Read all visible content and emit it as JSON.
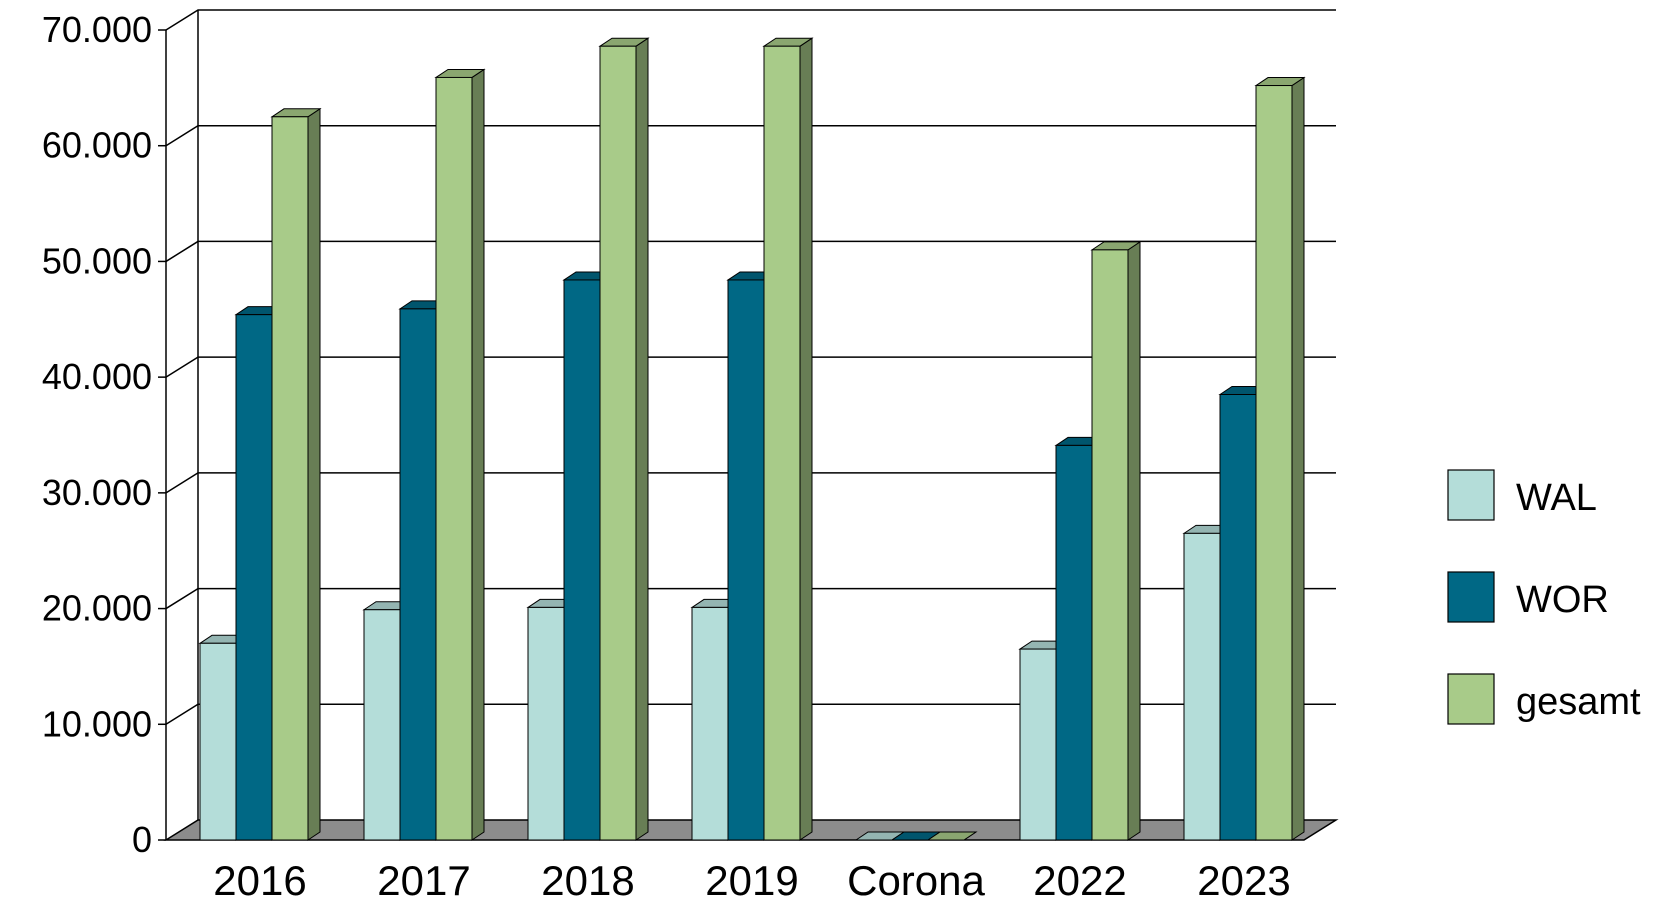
{
  "chart_data": {
    "type": "bar",
    "categories": [
      "2016",
      "2017",
      "2018",
      "2019",
      "Corona",
      "2022",
      "2023"
    ],
    "series": [
      {
        "name": "WAL",
        "color": "#b4ddd9",
        "values": [
          17000,
          19900,
          20100,
          20100,
          0,
          16500,
          26500
        ]
      },
      {
        "name": "WOR",
        "color": "#006885",
        "values": [
          45400,
          45900,
          48400,
          48400,
          0,
          34100,
          38500
        ]
      },
      {
        "name": "gesamt",
        "color": "#a8cb89",
        "values": [
          62500,
          65900,
          68600,
          68600,
          0,
          51000,
          65200
        ]
      }
    ],
    "y_ticks": [
      "0",
      "10.000",
      "20.000",
      "30.000",
      "40.000",
      "50.000",
      "60.000",
      "70.000"
    ],
    "ylim": [
      0,
      70000
    ],
    "grid": true,
    "legend_position": "right",
    "style": "3d-clustered-column"
  }
}
